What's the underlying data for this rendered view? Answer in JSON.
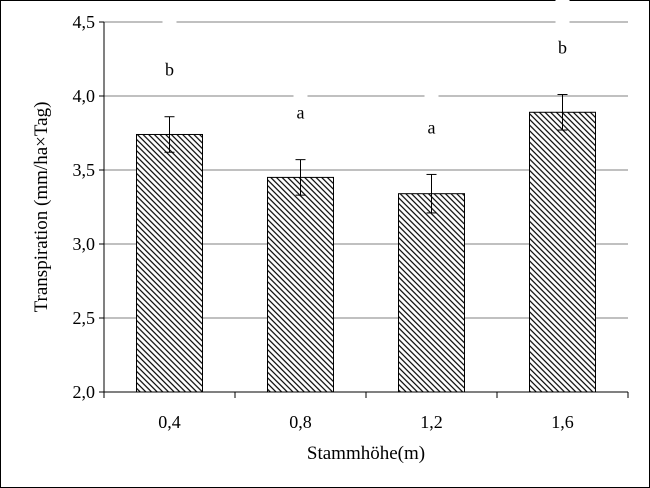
{
  "chart_data": {
    "type": "bar",
    "categories": [
      "0,4",
      "0,8",
      "1,2",
      "1,6"
    ],
    "values": [
      3.74,
      3.45,
      3.34,
      3.89
    ],
    "error": [
      0.12,
      0.12,
      0.13,
      0.12
    ],
    "annotations": [
      "b",
      "a",
      "a",
      "b"
    ],
    "xlabel": "Stammhöhe(m)",
    "ylabel": "Transpiration (mm/ha×Tag)",
    "ylim": [
      2.0,
      4.5
    ],
    "yticks": [
      2.0,
      2.5,
      3.0,
      3.5,
      4.0,
      4.5
    ],
    "ytick_labels": [
      "2,0",
      "2,5",
      "3,0",
      "3,5",
      "4,0",
      "4,5"
    ],
    "grid": true,
    "colors": {
      "bar_background": "#ffffff",
      "hatch": "#000000",
      "gridline": "#808080",
      "axis": "#000000",
      "frame": "#000000"
    }
  }
}
